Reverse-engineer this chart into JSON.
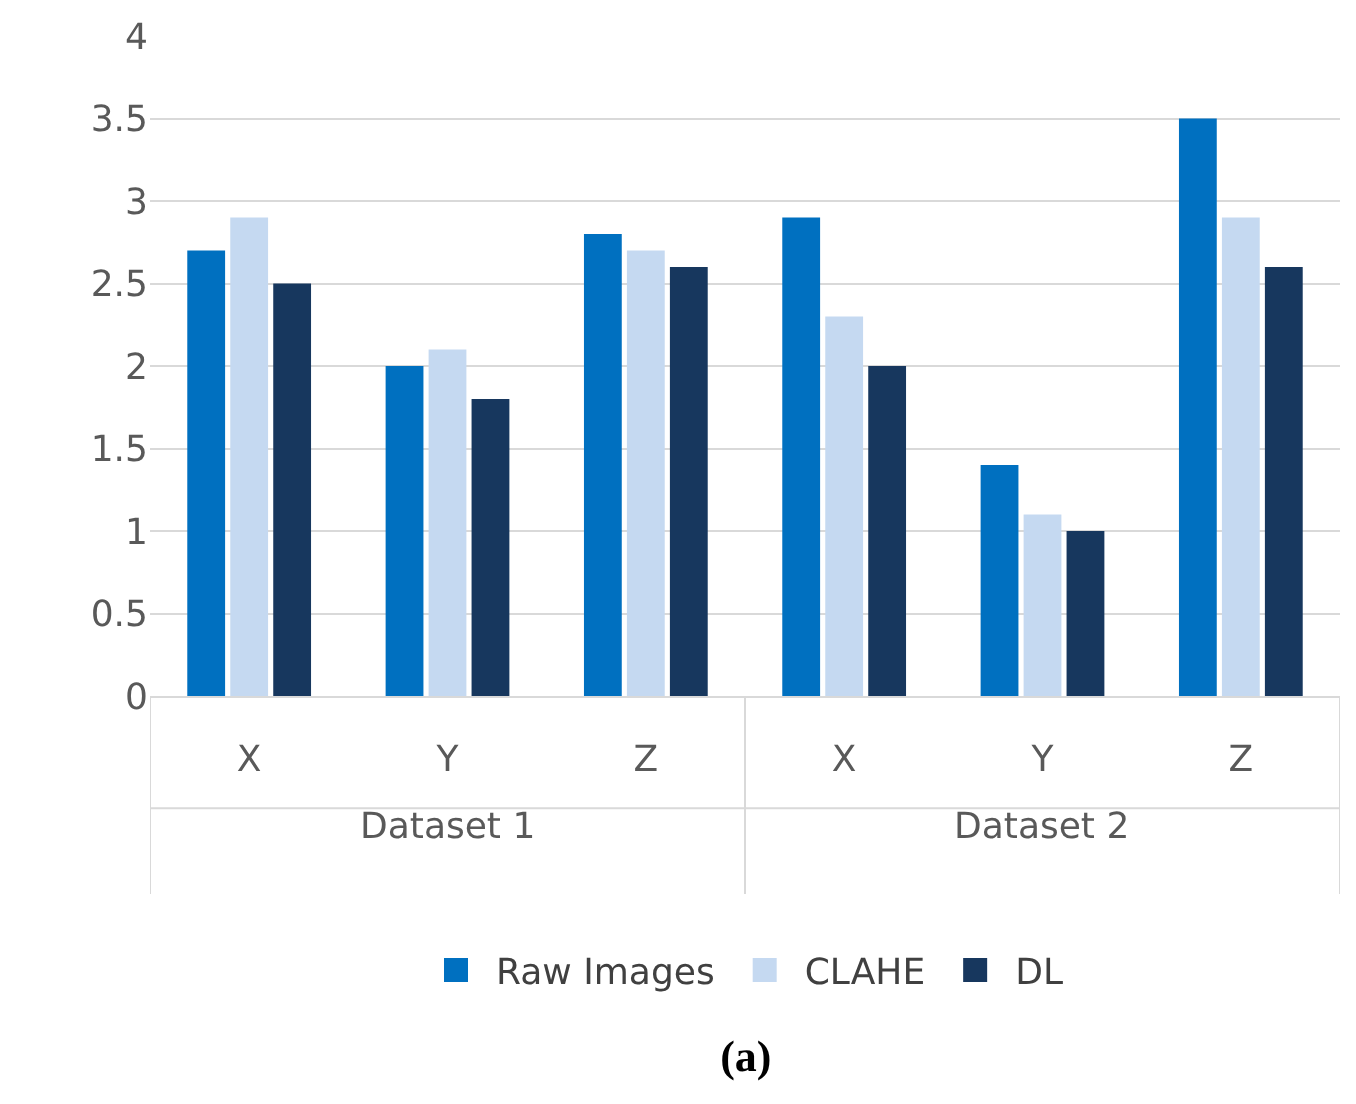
{
  "chart_data": {
    "type": "bar",
    "title": "(a)",
    "categories": [
      "X",
      "Y",
      "Z",
      "X",
      "Y",
      "Z"
    ],
    "annotations": [
      "Dataset 1",
      "Dataset 2"
    ],
    "series": [
      {
        "name": "Raw Images",
        "color": "#0070c0",
        "values": [
          2.7,
          2.0,
          2.8,
          2.9,
          1.4,
          3.5
        ]
      },
      {
        "name": "CLAHE",
        "color": "#c5d9f1",
        "values": [
          2.9,
          2.1,
          2.7,
          2.3,
          1.1,
          2.9
        ]
      },
      {
        "name": "DL",
        "color": "#17375e",
        "values": [
          2.5,
          1.8,
          2.6,
          2.0,
          1.0,
          2.6
        ]
      }
    ],
    "ylim": [
      0,
      4
    ],
    "yticks": [
      0,
      0.5,
      1,
      1.5,
      2,
      2.5,
      3,
      3.5,
      4
    ],
    "grid": "y",
    "legend": "bottom"
  }
}
